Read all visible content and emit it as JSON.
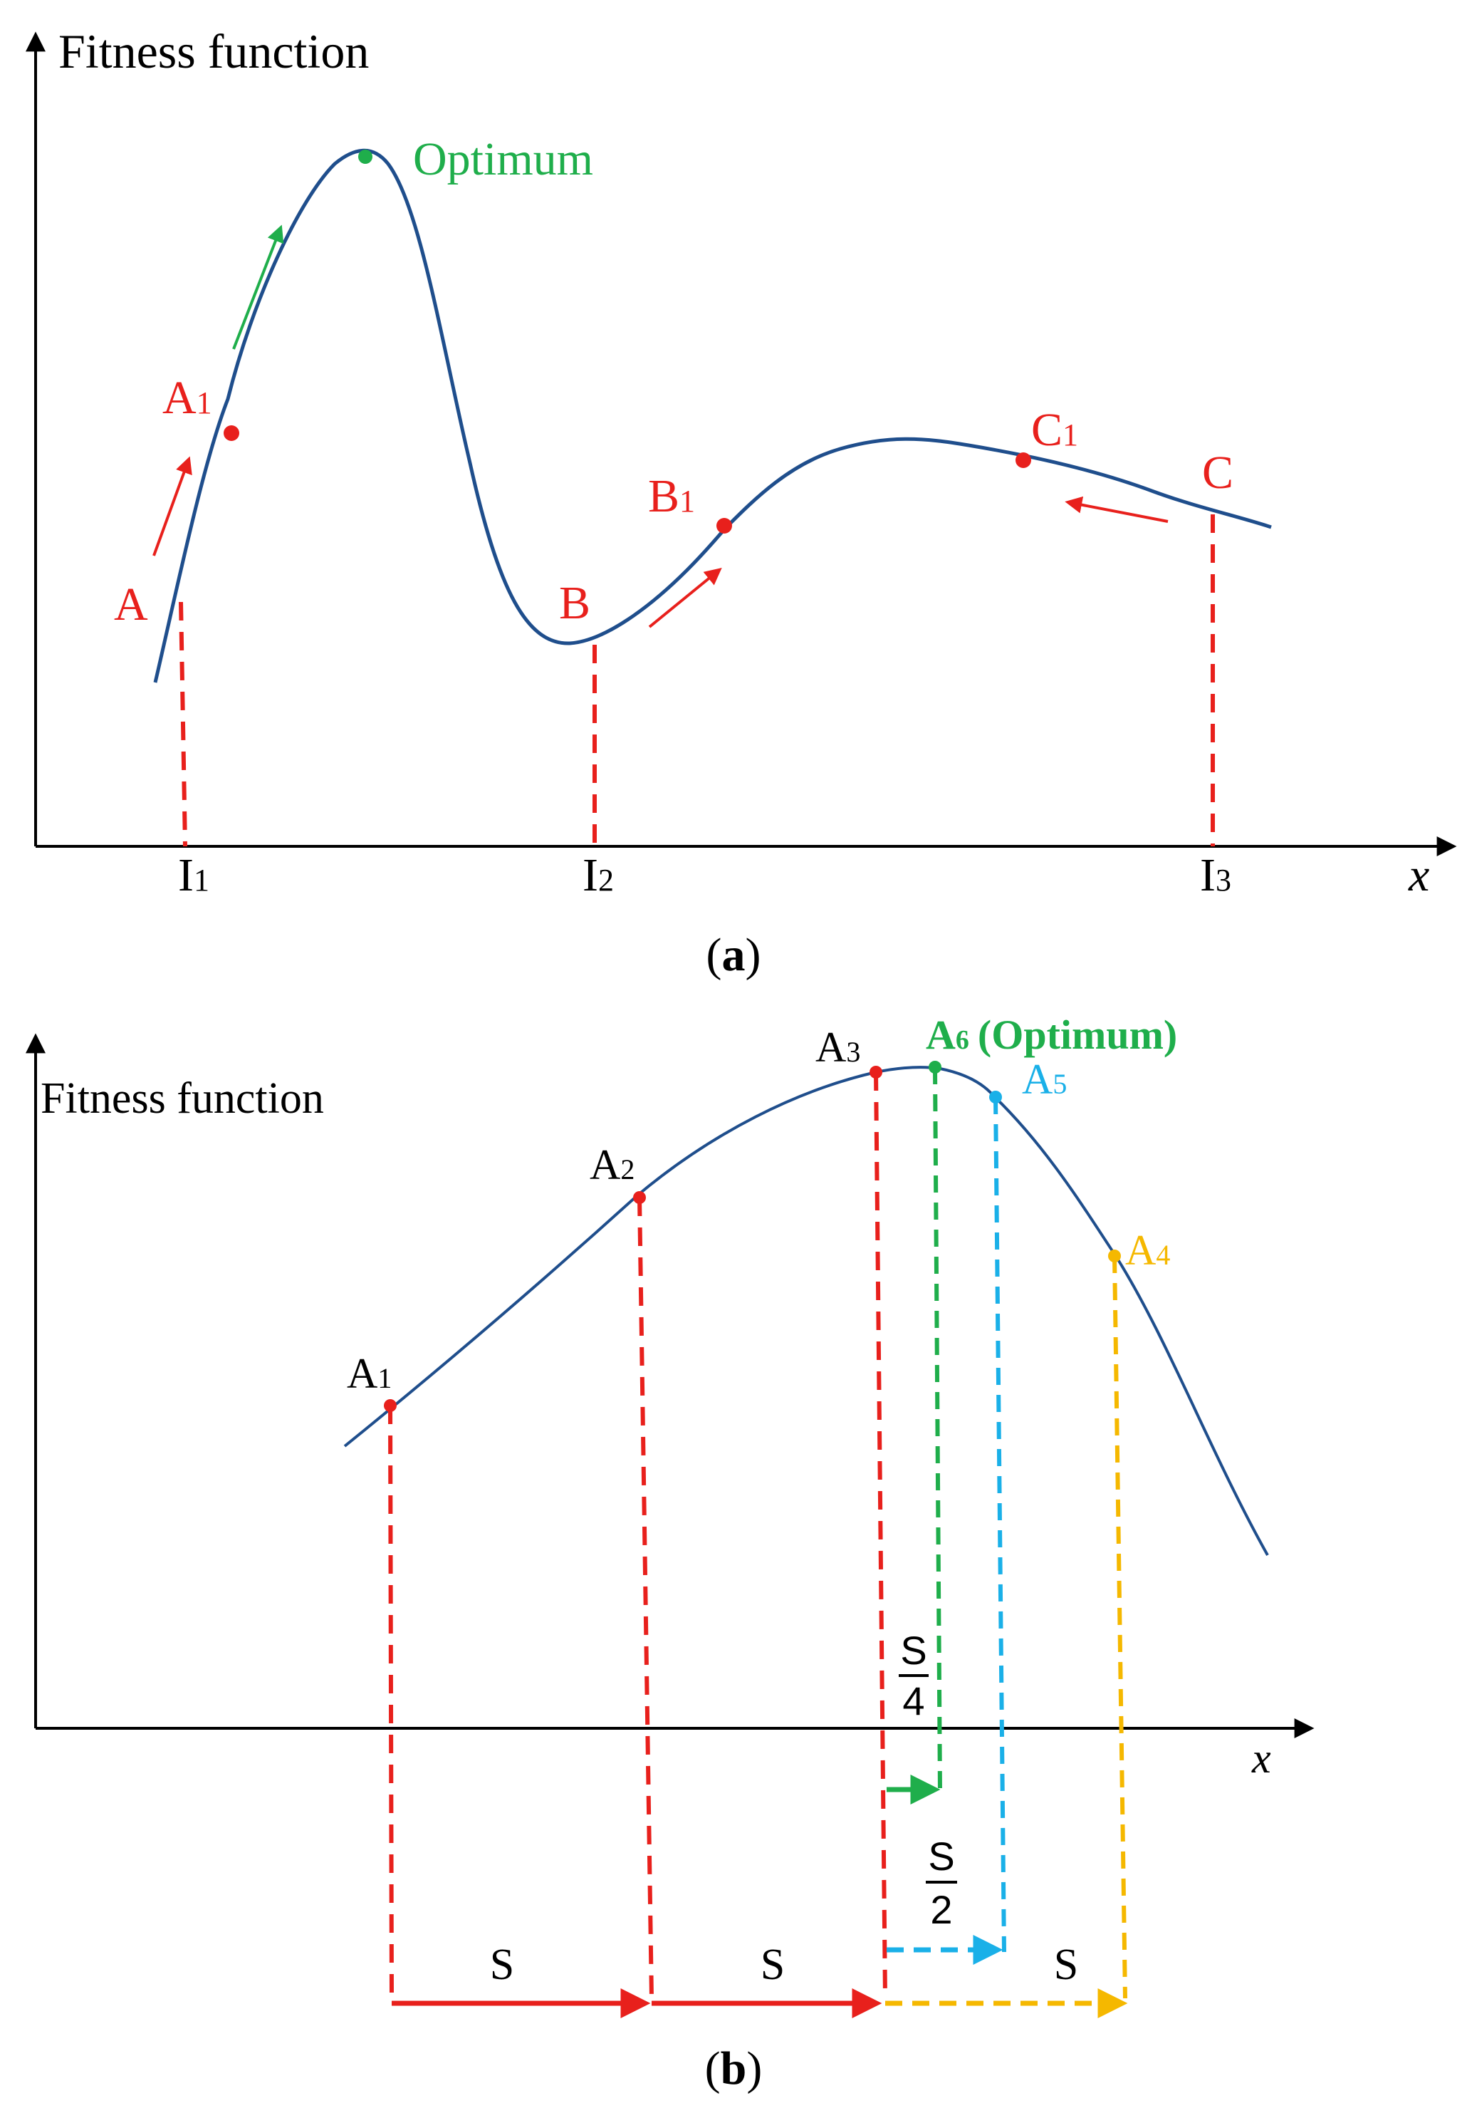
{
  "panel_a": {
    "ylabel": "Fitness function",
    "xlabel": "x",
    "caption_open": "(",
    "caption_letter": "a",
    "caption_close": ")",
    "optimum_label": "Optimum",
    "points": {
      "A": "A",
      "A1_main": "A",
      "A1_sub": "1",
      "B": "B",
      "B1_main": "B",
      "B1_sub": "1",
      "C": "C",
      "C1_main": "C",
      "C1_sub": "1"
    },
    "ticks": [
      {
        "main": "I",
        "sub": "1"
      },
      {
        "main": "I",
        "sub": "2"
      },
      {
        "main": "I",
        "sub": "3"
      }
    ]
  },
  "panel_b": {
    "ylabel": "Fitness function",
    "xlabel": "x",
    "caption_open": "(",
    "caption_letter": "b",
    "caption_close": ")",
    "points": {
      "A1_main": "A",
      "A1_sub": "1",
      "A2_main": "A",
      "A2_sub": "2",
      "A3_main": "A",
      "A3_sub": "3",
      "A4_main": "A",
      "A4_sub": "4",
      "A5_main": "A",
      "A5_sub": "5",
      "A6_main": "A",
      "A6_sub": "6",
      "A6_note": "(Optimum)"
    },
    "steps": {
      "s_full": "S",
      "s_numerator": "S",
      "s_half_den": "2",
      "s_quarter_den": "4"
    }
  },
  "colors": {
    "curve": "#1f4e8c",
    "axis": "#000000",
    "red": "#e8201c",
    "green": "#1fae4b",
    "cyan": "#1ab0e8",
    "yellow": "#f5b800"
  }
}
